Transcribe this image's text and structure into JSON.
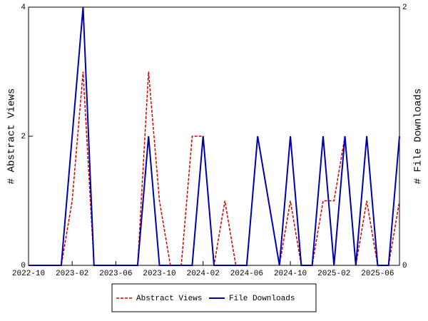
{
  "chart_data": {
    "type": "line",
    "categories": [
      "2022-10",
      null,
      null,
      null,
      "2023-02",
      null,
      null,
      null,
      "2023-06",
      null,
      null,
      null,
      "2023-10",
      null,
      null,
      null,
      "2024-02",
      null,
      null,
      null,
      "2024-06",
      null,
      null,
      null,
      "2024-10",
      null,
      null,
      null,
      "2025-02",
      null,
      null,
      null,
      "2025-06",
      null,
      null
    ],
    "series": [
      {
        "name": "Abstract Views",
        "color": "#cc0000",
        "dashed": true,
        "axis": "y",
        "values": [
          0,
          0,
          0,
          0,
          1,
          3,
          0,
          0,
          0,
          0,
          0,
          3,
          1,
          0,
          0,
          2,
          2,
          0,
          1,
          0,
          0,
          2,
          1,
          0,
          1,
          0,
          0,
          1,
          1,
          2,
          0,
          1,
          0,
          0,
          1
        ]
      },
      {
        "name": "File Downloads",
        "color": "#0000aa",
        "dashed": false,
        "axis": "y2",
        "values": [
          0,
          0,
          0,
          0,
          1,
          2,
          0,
          0,
          0,
          0,
          0,
          1,
          0,
          0,
          0,
          0,
          1,
          0,
          0,
          0,
          0,
          1,
          0.5,
          0,
          1,
          0,
          0,
          1,
          0,
          1,
          0,
          1,
          0,
          0,
          1
        ]
      }
    ],
    "ylabel": "# Abstract Views",
    "y2label": "# File Downloads",
    "ylim": [
      0,
      4
    ],
    "yticks": [
      0,
      2,
      4
    ],
    "y2lim": [
      0,
      2
    ],
    "y2ticks": [
      0,
      2
    ],
    "legend": "bottom"
  }
}
